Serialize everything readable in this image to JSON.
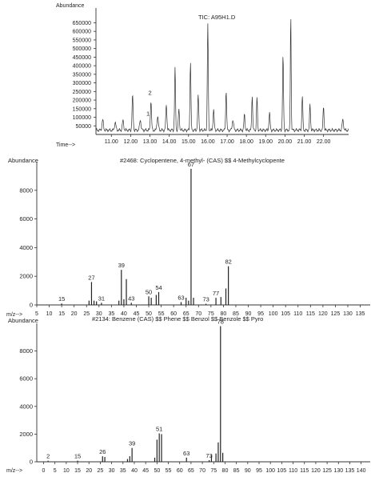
{
  "chart_data": [
    {
      "type": "line",
      "title": "TIC: A95H1.D",
      "ylabel": "Abundance",
      "xlabel": "Time-->",
      "ylim": [
        0,
        680000
      ],
      "xlim": [
        10.2,
        23.3
      ],
      "y_ticks": [
        "650000",
        "600000",
        "550000",
        "500000",
        "450000",
        "400000",
        "350000",
        "300000",
        "250000",
        "200000",
        "150000",
        "100000",
        "50000"
      ],
      "y_tick_values": [
        650000,
        600000,
        550000,
        500000,
        450000,
        400000,
        350000,
        300000,
        250000,
        200000,
        150000,
        100000,
        50000
      ],
      "x_ticks": [
        "11.00",
        "12.00",
        "13.00",
        "14.00",
        "15.00",
        "16.00",
        "17.00",
        "18.00",
        "19.00",
        "20.00",
        "21.00",
        "22.00"
      ],
      "x_tick_values": [
        11,
        12,
        13,
        14,
        15,
        16,
        17,
        18,
        19,
        20,
        21,
        22
      ],
      "annotations": [
        {
          "text": "2",
          "x": 13.0,
          "y": 230000
        },
        {
          "text": "1",
          "x": 12.9,
          "y": 110000
        }
      ],
      "series": [
        {
          "peaks": [
            {
              "t": 10.55,
              "h": 60000,
              "w": 0.05
            },
            {
              "t": 11.2,
              "h": 45000,
              "w": 0.05
            },
            {
              "t": 11.6,
              "h": 55000,
              "w": 0.05
            },
            {
              "t": 12.1,
              "h": 200000,
              "w": 0.04
            },
            {
              "t": 12.5,
              "h": 60000,
              "w": 0.05
            },
            {
              "t": 13.05,
              "h": 170000,
              "w": 0.04
            },
            {
              "t": 13.4,
              "h": 80000,
              "w": 0.05
            },
            {
              "t": 13.85,
              "h": 150000,
              "w": 0.04
            },
            {
              "t": 14.3,
              "h": 360000,
              "w": 0.035
            },
            {
              "t": 14.5,
              "h": 120000,
              "w": 0.04
            },
            {
              "t": 15.1,
              "h": 400000,
              "w": 0.035
            },
            {
              "t": 15.5,
              "h": 200000,
              "w": 0.04
            },
            {
              "t": 16.0,
              "h": 620000,
              "w": 0.035
            },
            {
              "t": 16.3,
              "h": 120000,
              "w": 0.04
            },
            {
              "t": 16.95,
              "h": 230000,
              "w": 0.035
            },
            {
              "t": 17.3,
              "h": 60000,
              "w": 0.05
            },
            {
              "t": 17.9,
              "h": 90000,
              "w": 0.04
            },
            {
              "t": 18.3,
              "h": 200000,
              "w": 0.035
            },
            {
              "t": 18.55,
              "h": 190000,
              "w": 0.035
            },
            {
              "t": 19.2,
              "h": 100000,
              "w": 0.04
            },
            {
              "t": 19.9,
              "h": 430000,
              "w": 0.035
            },
            {
              "t": 20.3,
              "h": 670000,
              "w": 0.03
            },
            {
              "t": 20.9,
              "h": 200000,
              "w": 0.035
            },
            {
              "t": 21.3,
              "h": 150000,
              "w": 0.035
            },
            {
              "t": 22.0,
              "h": 140000,
              "w": 0.035
            },
            {
              "t": 23.0,
              "h": 60000,
              "w": 0.05
            }
          ]
        }
      ]
    },
    {
      "type": "bar",
      "title": "#2468: Cyclopentene, 4-methyl- (CAS) $$ 4-Methylcyclopente",
      "ylabel": "Abundance",
      "xlabel": "m/z-->",
      "ylim": [
        0,
        10000
      ],
      "xlim": [
        5,
        139
      ],
      "y_ticks": [
        "8000",
        "6000",
        "4000",
        "2000",
        "0"
      ],
      "y_tick_values": [
        8000,
        6000,
        4000,
        2000,
        0
      ],
      "x_ticks": [
        "5",
        "10",
        "15",
        "20",
        "25",
        "30",
        "35",
        "40",
        "45",
        "50",
        "55",
        "60",
        "65",
        "70",
        "75",
        "80",
        "85",
        "90",
        "95",
        "100",
        "105",
        "110",
        "115",
        "120",
        "125",
        "130",
        "135"
      ],
      "x_tick_values": [
        5,
        10,
        15,
        20,
        25,
        30,
        35,
        40,
        45,
        50,
        55,
        60,
        65,
        70,
        75,
        80,
        85,
        90,
        95,
        100,
        105,
        110,
        115,
        120,
        125,
        130,
        135
      ],
      "peaks": [
        {
          "mz": 15,
          "i": 100
        },
        {
          "mz": 26,
          "i": 300
        },
        {
          "mz": 27,
          "i": 1600
        },
        {
          "mz": 28,
          "i": 300
        },
        {
          "mz": 29,
          "i": 250
        },
        {
          "mz": 31,
          "i": 150
        },
        {
          "mz": 38,
          "i": 300
        },
        {
          "mz": 39,
          "i": 2450
        },
        {
          "mz": 40,
          "i": 400
        },
        {
          "mz": 41,
          "i": 1800
        },
        {
          "mz": 43,
          "i": 150
        },
        {
          "mz": 50,
          "i": 600
        },
        {
          "mz": 51,
          "i": 500
        },
        {
          "mz": 53,
          "i": 700
        },
        {
          "mz": 54,
          "i": 900
        },
        {
          "mz": 63,
          "i": 200
        },
        {
          "mz": 65,
          "i": 500
        },
        {
          "mz": 66,
          "i": 300
        },
        {
          "mz": 67,
          "i": 9500
        },
        {
          "mz": 68,
          "i": 500
        },
        {
          "mz": 73,
          "i": 80
        },
        {
          "mz": 77,
          "i": 500
        },
        {
          "mz": 79,
          "i": 550
        },
        {
          "mz": 81,
          "i": 1150
        },
        {
          "mz": 82,
          "i": 2700
        }
      ],
      "peak_labels": [
        {
          "mz": 15,
          "text": "15"
        },
        {
          "mz": 27,
          "text": "27"
        },
        {
          "mz": 31,
          "text": "31"
        },
        {
          "mz": 39,
          "text": "39"
        },
        {
          "mz": 43,
          "text": "43"
        },
        {
          "mz": 50,
          "text": "50"
        },
        {
          "mz": 54,
          "text": "54"
        },
        {
          "mz": 63,
          "text": "63"
        },
        {
          "mz": 67,
          "text": "67"
        },
        {
          "mz": 73,
          "text": "73"
        },
        {
          "mz": 77,
          "text": "77"
        },
        {
          "mz": 82,
          "text": "82"
        }
      ]
    },
    {
      "type": "bar",
      "title": "#2134: Benzene (CAS) $$ Phene $$ Benzol $$ Benzole $$ Pyro",
      "ylabel": "Abundance",
      "xlabel": "m/z-->",
      "ylim": [
        0,
        10000
      ],
      "xlim": [
        -3,
        144
      ],
      "y_ticks": [
        "8000",
        "6000",
        "4000",
        "2000",
        "0"
      ],
      "y_tick_values": [
        8000,
        6000,
        4000,
        2000,
        0
      ],
      "x_ticks": [
        "0",
        "5",
        "10",
        "15",
        "20",
        "25",
        "30",
        "35",
        "40",
        "45",
        "50",
        "55",
        "60",
        "65",
        "70",
        "75",
        "80",
        "85",
        "90",
        "95",
        "100",
        "105",
        "110",
        "115",
        "120",
        "125",
        "130",
        "135",
        "140"
      ],
      "x_tick_values": [
        0,
        5,
        10,
        15,
        20,
        25,
        30,
        35,
        40,
        45,
        50,
        55,
        60,
        65,
        70,
        75,
        80,
        85,
        90,
        95,
        100,
        105,
        110,
        115,
        120,
        125,
        130,
        135,
        140
      ],
      "peaks": [
        {
          "mz": 2,
          "i": 80
        },
        {
          "mz": 15,
          "i": 80
        },
        {
          "mz": 26,
          "i": 400
        },
        {
          "mz": 27,
          "i": 350
        },
        {
          "mz": 37,
          "i": 200
        },
        {
          "mz": 38,
          "i": 400
        },
        {
          "mz": 39,
          "i": 1000
        },
        {
          "mz": 49,
          "i": 300
        },
        {
          "mz": 50,
          "i": 1600
        },
        {
          "mz": 51,
          "i": 2050
        },
        {
          "mz": 52,
          "i": 2000
        },
        {
          "mz": 63,
          "i": 300
        },
        {
          "mz": 73,
          "i": 120
        },
        {
          "mz": 74,
          "i": 500
        },
        {
          "mz": 76,
          "i": 600
        },
        {
          "mz": 77,
          "i": 1400
        },
        {
          "mz": 78,
          "i": 9800
        },
        {
          "mz": 79,
          "i": 650
        }
      ],
      "peak_labels": [
        {
          "mz": 2,
          "text": "2"
        },
        {
          "mz": 15,
          "text": "15"
        },
        {
          "mz": 26,
          "text": "26"
        },
        {
          "mz": 39,
          "text": "39"
        },
        {
          "mz": 51,
          "text": "51"
        },
        {
          "mz": 63,
          "text": "63"
        },
        {
          "mz": 73,
          "text": "73"
        },
        {
          "mz": 78,
          "text": "78"
        }
      ]
    }
  ]
}
